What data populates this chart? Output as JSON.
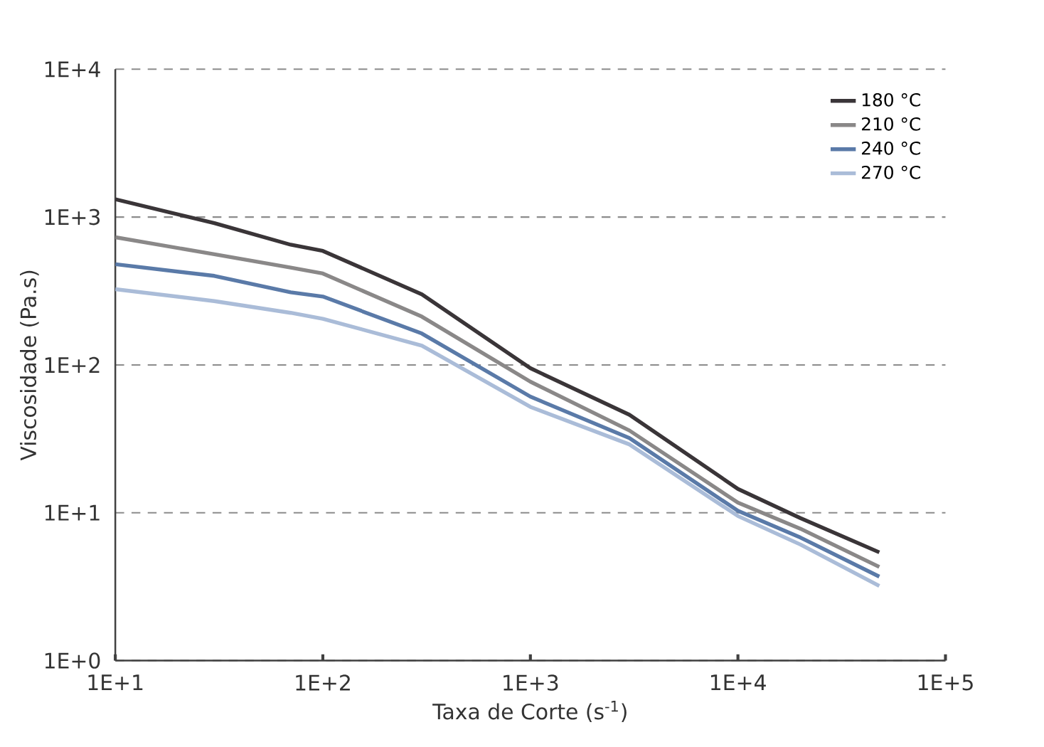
{
  "chart_data": {
    "type": "line",
    "xlabel": "Taxa de Corte (s$^{-1}$)",
    "ylabel": "Viscosidade (Pa.s)",
    "log": "xy",
    "grid": "y",
    "legend": "top right",
    "marker": "none",
    "line_style": "solid",
    "x": [
      10,
      30,
      70,
      100,
      300,
      1000,
      3000,
      10000,
      20000,
      48000
    ],
    "xlim": [
      10,
      100000
    ],
    "ylim": [
      1,
      10000
    ],
    "xticks": [
      {
        "value": 10,
        "label": "1E+1"
      },
      {
        "value": 100,
        "label": "1E+2"
      },
      {
        "value": 1000,
        "label": "1E+3"
      },
      {
        "value": 10000,
        "label": "1E+4"
      },
      {
        "value": 100000,
        "label": "1E+5"
      }
    ],
    "yticks": [
      {
        "value": 1,
        "label": "1E+0"
      },
      {
        "value": 10,
        "label": "1E+1"
      },
      {
        "value": 100,
        "label": "1E+2"
      },
      {
        "value": 1000,
        "label": "1E+3"
      },
      {
        "value": 10000,
        "label": "1E+4"
      }
    ],
    "series": [
      {
        "name": "180 °C",
        "color": "#3a3538",
        "values": [
          1320,
          910,
          650,
          590,
          300,
          95,
          46,
          14.5,
          9.2,
          5.4
        ]
      },
      {
        "name": "210 °C",
        "color": "#8a8888",
        "values": [
          730,
          560,
          455,
          415,
          212,
          77,
          36,
          11.7,
          7.8,
          4.3
        ]
      },
      {
        "name": "240 °C",
        "color": "#5a7aa8",
        "values": [
          480,
          400,
          310,
          290,
          163,
          61,
          32,
          10.3,
          6.8,
          3.7
        ]
      },
      {
        "name": "270 °C",
        "color": "#aabcd8",
        "values": [
          325,
          270,
          225,
          205,
          135,
          52,
          29,
          9.5,
          6.1,
          3.2
        ]
      }
    ]
  }
}
